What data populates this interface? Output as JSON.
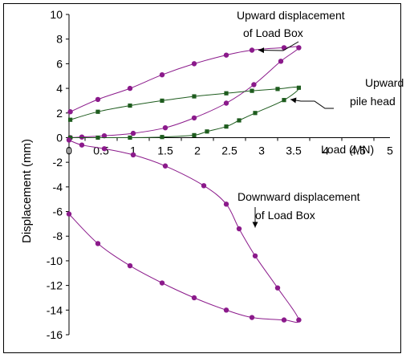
{
  "chart_data": {
    "type": "scatter",
    "ylabel": "Displacement (mm)",
    "x_axis_label": "Load (MN)",
    "xlim": [
      0,
      5
    ],
    "ylim": [
      -16,
      10
    ],
    "x_ticks": [
      "0",
      "0.5",
      "1",
      "1.5",
      "2",
      "2.5",
      "3",
      "3.5",
      "4",
      "4.5",
      "5"
    ],
    "y_ticks": [
      "10",
      "8",
      "6",
      "4",
      "2",
      "0",
      "-2",
      "-4",
      "-6",
      "-8",
      "-10",
      "-12",
      "-14",
      "-16"
    ],
    "grid": false,
    "annotations": [
      {
        "lines": [
          "Upward displacement",
          "of Load Box"
        ],
        "arrow_to": [
          2.95,
          7.1
        ]
      },
      {
        "lines": [
          "Upward",
          "pile head"
        ],
        "arrow_to": [
          3.45,
          3.1
        ]
      },
      {
        "lines": [
          "Downward displacement",
          "of Load Box"
        ],
        "arrow_to": [
          2.9,
          -7.3
        ]
      }
    ],
    "series": [
      {
        "marker": "circle",
        "color": "#8B1A8B",
        "x": [
          0.02,
          0.45,
          0.95,
          1.45,
          1.95,
          2.45,
          2.85,
          3.35,
          3.58,
          3.3,
          2.88,
          2.45,
          1.95,
          1.5,
          1.0,
          0.55,
          0.2,
          0.02
        ],
        "y": [
          2.1,
          3.1,
          4.0,
          5.1,
          6.0,
          6.7,
          7.1,
          7.3,
          7.3,
          6.2,
          4.3,
          2.8,
          1.6,
          0.8,
          0.35,
          0.15,
          0.05,
          0.0
        ]
      },
      {
        "marker": "square",
        "color": "#1E5C1E",
        "x": [
          0.02,
          0.45,
          0.95,
          1.45,
          1.95,
          2.45,
          2.85,
          3.25,
          3.58,
          3.35,
          2.9,
          2.65,
          2.45,
          2.15,
          1.95,
          1.45,
          0.95,
          0.45,
          0.02
        ],
        "y": [
          1.45,
          2.1,
          2.6,
          3.0,
          3.35,
          3.6,
          3.8,
          3.95,
          4.05,
          3.05,
          2.0,
          1.4,
          0.9,
          0.5,
          0.2,
          0.05,
          0.0,
          0.0,
          0.0
        ]
      },
      {
        "marker": "circle",
        "color": "#8B1A8B",
        "x": [
          0.0,
          0.45,
          0.95,
          1.45,
          1.95,
          2.45,
          2.85,
          3.35,
          3.58,
          3.25,
          2.9,
          2.65,
          2.45,
          2.1,
          1.5,
          1.0,
          0.55,
          0.2,
          0.0
        ],
        "y": [
          -6.2,
          -8.6,
          -10.4,
          -11.8,
          -13.0,
          -14.0,
          -14.6,
          -14.8,
          -14.8,
          -12.2,
          -9.6,
          -7.4,
          -5.4,
          -3.9,
          -2.3,
          -1.4,
          -0.9,
          -0.6,
          -0.2
        ]
      }
    ]
  }
}
